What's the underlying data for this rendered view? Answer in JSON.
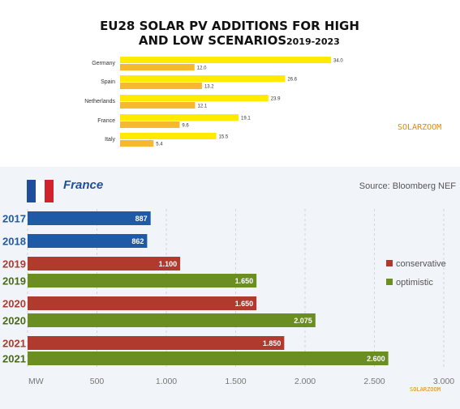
{
  "chart_data": [
    {
      "type": "bar",
      "orientation": "horizontal",
      "title_line1": "EU28 SOLAR PV ADDITIONS FOR HIGH",
      "title_line2": "AND LOW SCENARIOS",
      "title_years": "2019-2023",
      "watermark": "SOLARZOOM",
      "categories": [
        "Germany",
        "Spain",
        "Netherlands",
        "France",
        "Italy"
      ],
      "series": [
        {
          "values": [
            34.0,
            26.6,
            23.9,
            19.1,
            15.5
          ],
          "labels": [
            "34.0",
            "26.6",
            "23.9",
            "19.1",
            "15.5"
          ],
          "color": "#ffea00"
        },
        {
          "values": [
            12.0,
            13.2,
            12.1,
            9.6,
            5.4
          ],
          "labels": [
            "12.0",
            "13.2",
            "12.1",
            "9.6",
            "5.4"
          ],
          "color": "#f7b731"
        }
      ],
      "xlim": [
        0,
        40
      ]
    },
    {
      "type": "bar",
      "orientation": "horizontal",
      "title": "France",
      "source": "Source: Bloomberg NEF",
      "watermark": "SOLARZOOM",
      "xlim": [
        0,
        3000
      ],
      "xticks": [
        "MW",
        "500",
        "1.000",
        "1.500",
        "2.000",
        "2.500",
        "3.000"
      ],
      "legend": {
        "placement": "right",
        "items": [
          {
            "label": "conservative",
            "color": "#b03a2e"
          },
          {
            "label": "optimistic",
            "color": "#6b8e23"
          }
        ]
      },
      "bars": [
        {
          "year": "2017",
          "value": 887,
          "label": "887",
          "color": "#1f5aa6",
          "year_color": "#1f5aa6"
        },
        {
          "year": "2018",
          "value": 862,
          "label": "862",
          "color": "#1f5aa6",
          "year_color": "#1f5aa6"
        },
        {
          "year": "2019",
          "value": 1100,
          "label": "1.100",
          "color": "#b03a2e",
          "year_color": "#b03a2e"
        },
        {
          "year": "2019",
          "value": 1650,
          "label": "1.650",
          "color": "#6b8e23",
          "year_color": "#4a6b16"
        },
        {
          "year": "2020",
          "value": 1650,
          "label": "1.650",
          "color": "#b03a2e",
          "year_color": "#b03a2e"
        },
        {
          "year": "2020",
          "value": 2075,
          "label": "2.075",
          "color": "#6b8e23",
          "year_color": "#4a6b16"
        },
        {
          "year": "2021",
          "value": 1850,
          "label": "1.850",
          "color": "#b03a2e",
          "year_color": "#b03a2e"
        },
        {
          "year": "2021",
          "value": 2600,
          "label": "2.600",
          "color": "#6b8e23",
          "year_color": "#4a6b16"
        }
      ],
      "flag_colors": [
        "#1f4e9c",
        "#ffffff",
        "#d0232c"
      ]
    }
  ]
}
